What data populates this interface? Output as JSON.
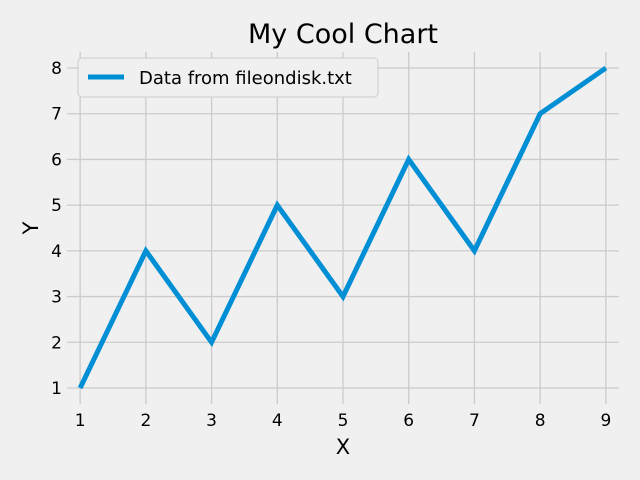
{
  "chart_data": {
    "type": "line",
    "title": "My Cool Chart",
    "xlabel": "X",
    "ylabel": "Y",
    "x": [
      1,
      2,
      3,
      4,
      5,
      6,
      7,
      8,
      9
    ],
    "xticks": [
      1,
      2,
      3,
      4,
      5,
      6,
      7,
      8,
      9
    ],
    "yticks": [
      1,
      2,
      3,
      4,
      5,
      6,
      7,
      8
    ],
    "xlim": [
      0.8,
      9.2
    ],
    "ylim": [
      0.65,
      8.35
    ],
    "grid": true,
    "legend": "top-left",
    "series": [
      {
        "name": "Data from fileondisk.txt",
        "color": "#008fd5",
        "values": [
          1,
          4,
          2,
          5,
          3,
          6,
          4,
          7,
          8
        ]
      }
    ]
  },
  "style": {
    "background": "#f0f0f0",
    "grid_color": "#cbcbcb",
    "legend_edge": "#cccccc"
  }
}
